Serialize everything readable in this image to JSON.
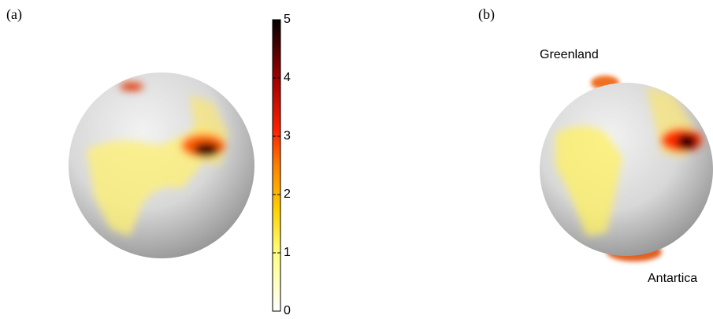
{
  "panels": [
    {
      "label": "(a)"
    },
    {
      "label": "(b)",
      "annotations": [
        "Greenland",
        "Antartica"
      ]
    }
  ],
  "colorbar": {
    "lim": [
      0,
      5
    ],
    "ticks": [
      0,
      1,
      2,
      3,
      4,
      5
    ]
  }
}
